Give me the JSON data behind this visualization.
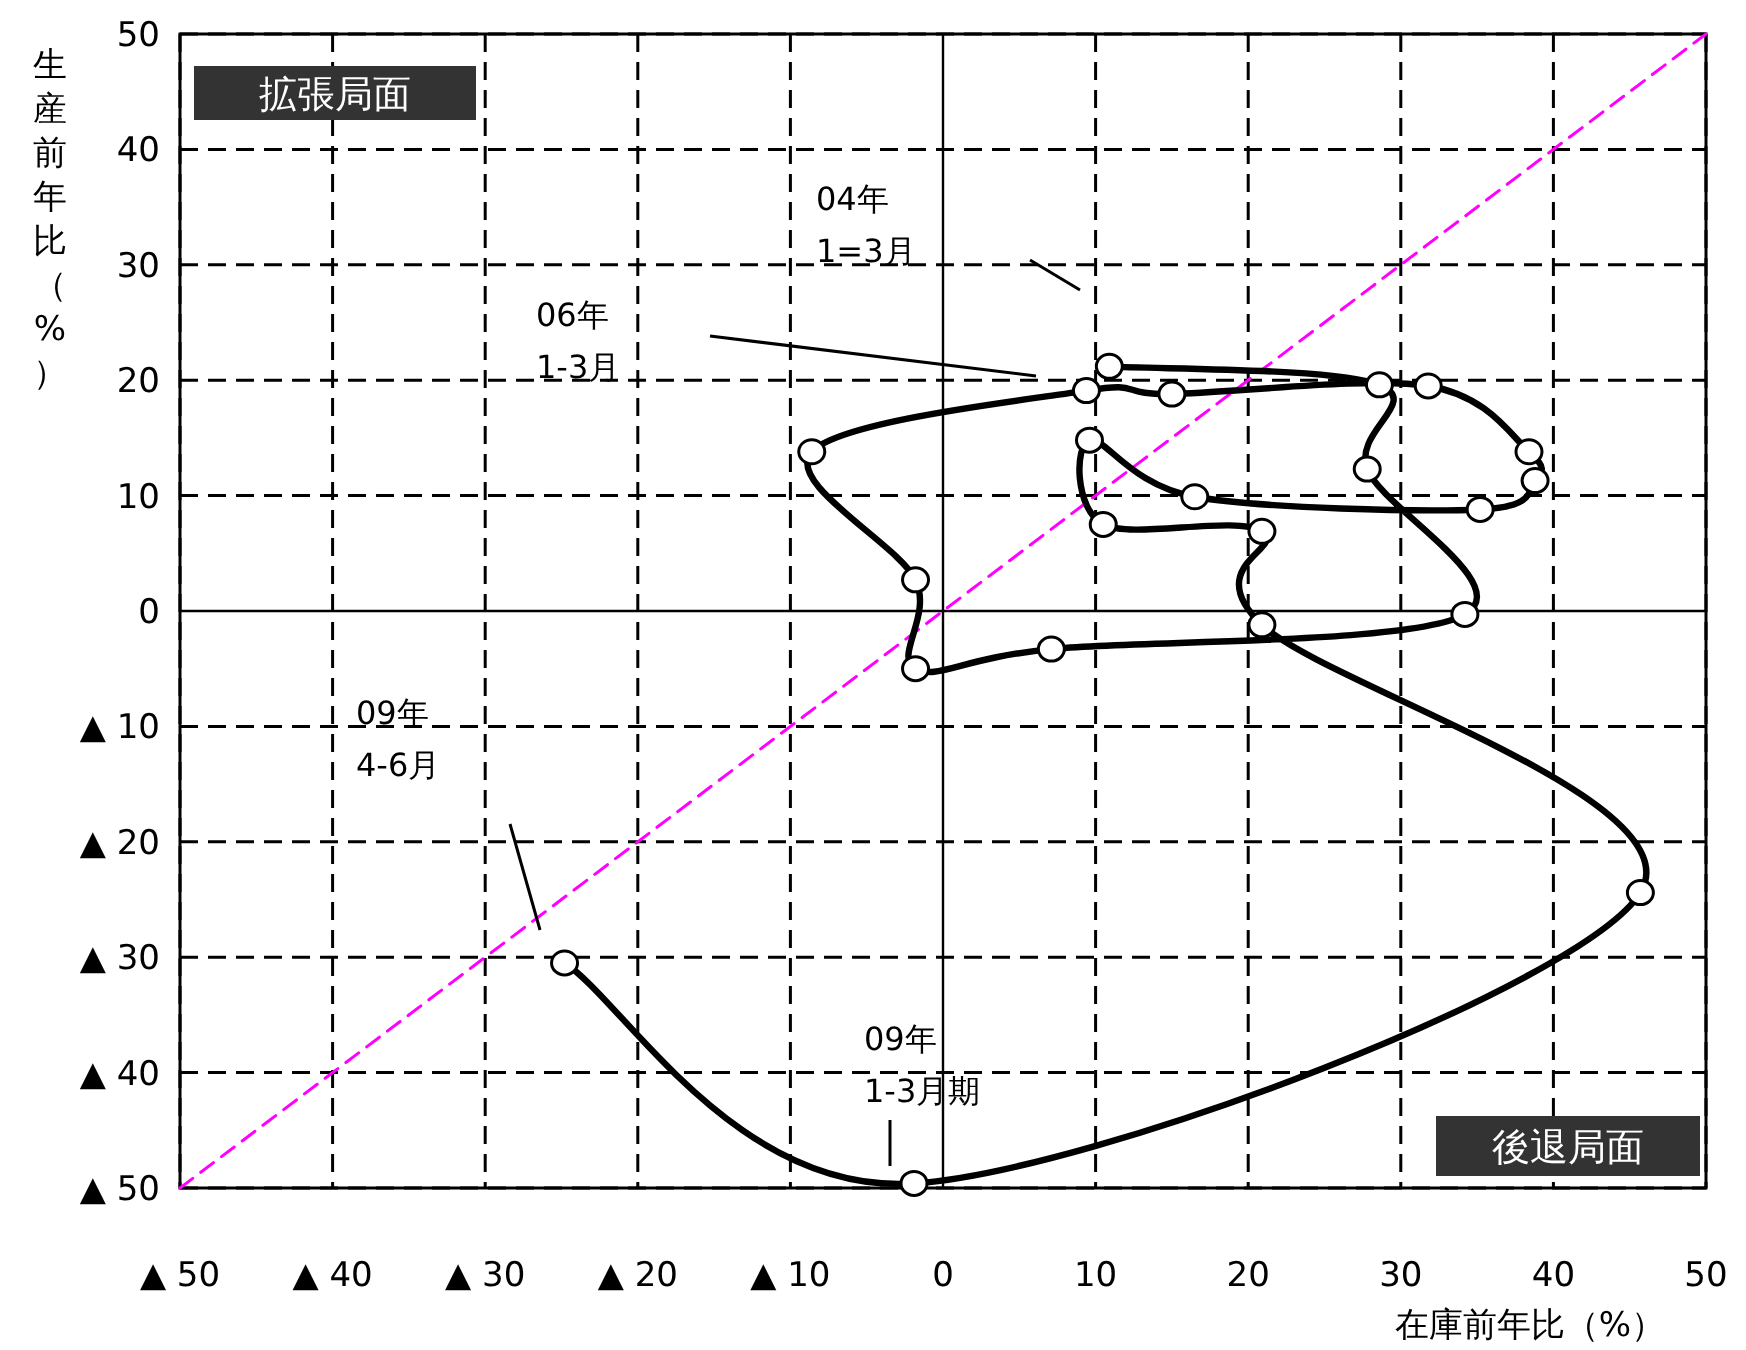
{
  "chart_data": {
    "type": "line",
    "xlabel": "在庫前年比（%）",
    "ylabel": "生産前年比（%）",
    "xlim": [
      -50,
      50
    ],
    "ylim": [
      -50,
      50
    ],
    "xticks": [
      {
        "value": -50,
        "label": "▲ 50"
      },
      {
        "value": -40,
        "label": "▲ 40"
      },
      {
        "value": -30,
        "label": "▲ 30"
      },
      {
        "value": -20,
        "label": "▲ 20"
      },
      {
        "value": -10,
        "label": "▲ 10"
      },
      0,
      10,
      20,
      30,
      40,
      50
    ],
    "yticks": [
      {
        "value": -50,
        "label": "▲ 50"
      },
      {
        "value": -40,
        "label": "▲ 40"
      },
      {
        "value": -30,
        "label": "▲ 30"
      },
      {
        "value": -20,
        "label": "▲ 20"
      },
      {
        "value": -10,
        "label": "▲ 10"
      },
      0,
      10,
      20,
      30,
      40,
      50
    ],
    "grid": true,
    "marker": "circle",
    "line_style": "solid",
    "series": [
      {
        "color": "#000000",
        "x": [
          10.9,
          28.6,
          27.8,
          34.2,
          7.1,
          -1.8,
          -1.8,
          -8.6,
          9.4,
          15.0,
          31.8,
          38.4,
          38.8,
          35.2,
          16.5,
          9.6,
          10.5,
          20.9,
          20.9,
          45.7,
          -1.9,
          -24.8
        ],
        "values": [
          21.2,
          19.6,
          12.3,
          -0.3,
          -3.3,
          -5.0,
          2.7,
          13.8,
          19.1,
          18.8,
          19.5,
          13.8,
          11.3,
          8.8,
          9.9,
          14.8,
          7.5,
          6.9,
          -1.2,
          -24.4,
          -49.6,
          -30.5
        ]
      },
      {
        "color": "#ff00ff",
        "line_style": "dashed",
        "marker": "none",
        "x": [
          -50,
          50
        ],
        "values": [
          -50,
          50
        ]
      }
    ],
    "annotations": [
      "拡張局面",
      "後退局面",
      "04年\n1=3月",
      "06年\n1-3月",
      "09年\n4-6月",
      "09年\n1-3月期"
    ]
  }
}
